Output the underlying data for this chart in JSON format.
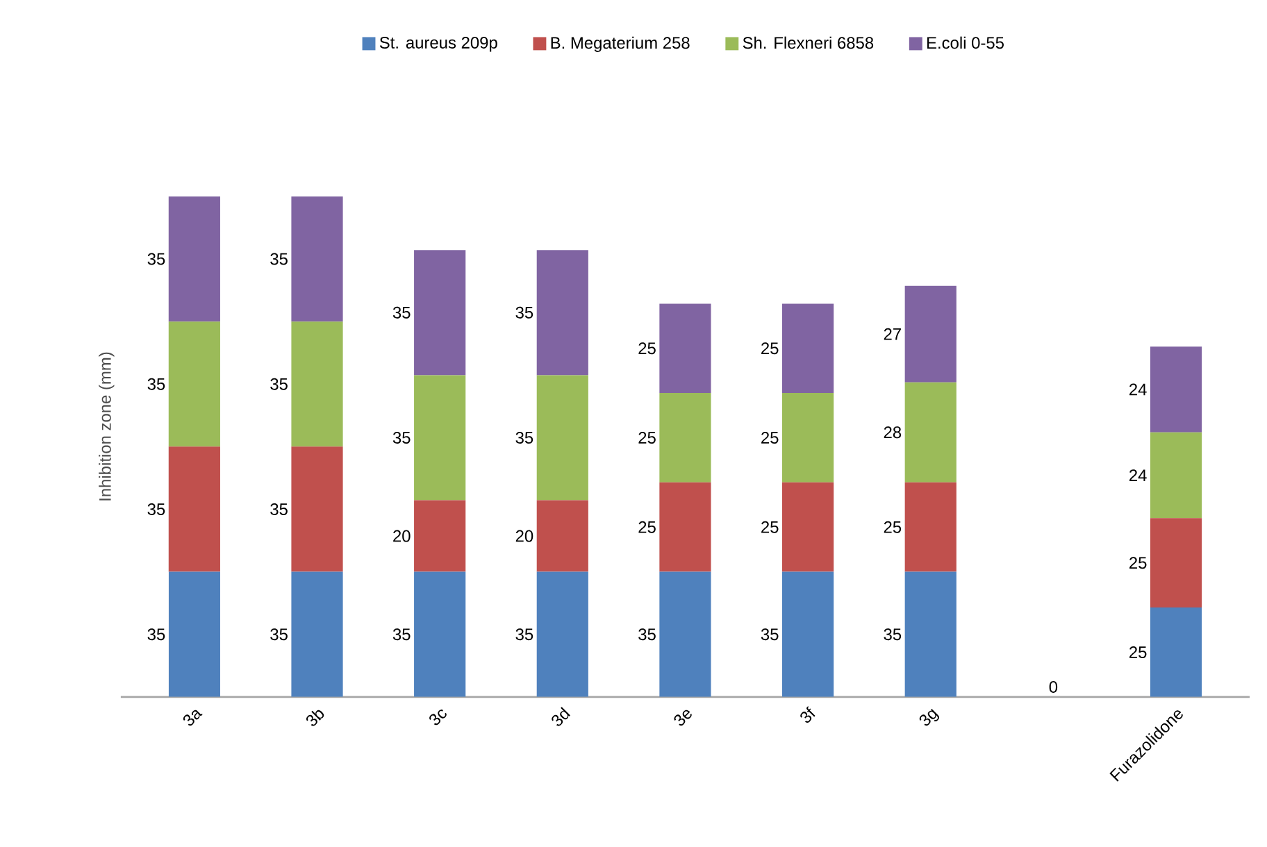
{
  "chart_data": {
    "type": "bar",
    "stacked": true,
    "ylabel": "Inhibition zone (mm)",
    "legend": "top",
    "categories": [
      "3a",
      "3b",
      "3c",
      "3d",
      "3e",
      "3f",
      "3g",
      null,
      "Furazolidone"
    ],
    "series": [
      {
        "name": "St. aureus 209p",
        "color": "#4f81bd",
        "values": [
          35,
          35,
          35,
          35,
          35,
          35,
          35,
          0,
          25
        ],
        "value_labels": [
          "35",
          "35",
          "35",
          "35",
          "35",
          "35",
          "35",
          "0",
          "25"
        ]
      },
      {
        "name": "B. Megaterium 258",
        "color": "#c0504d",
        "values": [
          35,
          35,
          20,
          20,
          25,
          25,
          25,
          0,
          25
        ],
        "value_labels": [
          "35",
          "35",
          "20",
          "20",
          "25",
          "25",
          "25",
          null,
          "25"
        ]
      },
      {
        "name": "Sh. Flexneri 6858",
        "color": "#9bbb59",
        "values": [
          35,
          35,
          35,
          35,
          25,
          25,
          28,
          0,
          24
        ],
        "value_labels": [
          "35",
          "35",
          "35",
          "35",
          "25",
          "25",
          "28",
          null,
          "24"
        ]
      },
      {
        "name": "E.coli 0-55",
        "color": "#8064a2",
        "values": [
          35,
          35,
          35,
          35,
          25,
          25,
          27,
          0,
          24
        ],
        "value_labels": [
          "35",
          "35",
          "35",
          "35",
          "25",
          "25",
          "27",
          null,
          "24"
        ]
      }
    ]
  }
}
